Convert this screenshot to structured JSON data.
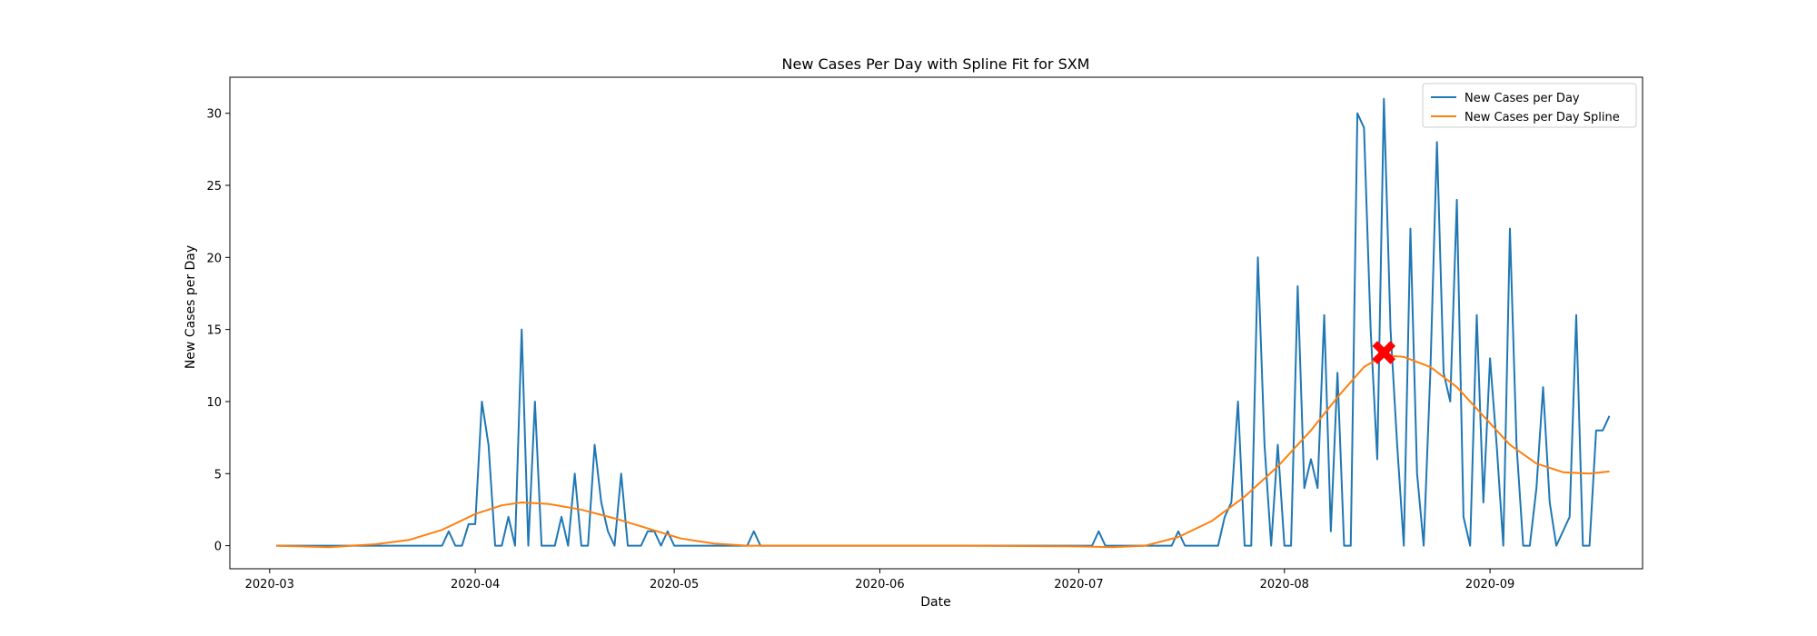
{
  "chart_data": {
    "type": "line",
    "title": "New Cases Per Day with Spline Fit for SXM",
    "xlabel": "Date",
    "ylabel": "New Cases per Day",
    "x_range": [
      "2020-02-24",
      "2020-09-24"
    ],
    "ylim": [
      -1.6,
      32.5
    ],
    "x_ticks": [
      "2020-03-01",
      "2020-04-01",
      "2020-05-01",
      "2020-06-01",
      "2020-07-01",
      "2020-08-01",
      "2020-09-01"
    ],
    "x_tick_labels": [
      "2020-03",
      "2020-04",
      "2020-05",
      "2020-06",
      "2020-07",
      "2020-08",
      "2020-09"
    ],
    "y_ticks": [
      0,
      5,
      10,
      15,
      20,
      25,
      30
    ],
    "y_tick_labels": [
      "0",
      "5",
      "10",
      "15",
      "20",
      "25",
      "30"
    ],
    "grid": false,
    "legend_position": "top-right",
    "series": [
      {
        "name": "New Cases per Day",
        "color": "#1f77b4",
        "points": [
          [
            "2020-03-02",
            0
          ],
          [
            "2020-03-27",
            0
          ],
          [
            "2020-03-28",
            1
          ],
          [
            "2020-03-29",
            0
          ],
          [
            "2020-03-30",
            0
          ],
          [
            "2020-03-31",
            1.5
          ],
          [
            "2020-04-01",
            1.5
          ],
          [
            "2020-04-02",
            10
          ],
          [
            "2020-04-03",
            7
          ],
          [
            "2020-04-04",
            0
          ],
          [
            "2020-04-05",
            0
          ],
          [
            "2020-04-06",
            2
          ],
          [
            "2020-04-07",
            0
          ],
          [
            "2020-04-08",
            15
          ],
          [
            "2020-04-09",
            0
          ],
          [
            "2020-04-10",
            10
          ],
          [
            "2020-04-11",
            0
          ],
          [
            "2020-04-12",
            0
          ],
          [
            "2020-04-13",
            0
          ],
          [
            "2020-04-14",
            2
          ],
          [
            "2020-04-15",
            0
          ],
          [
            "2020-04-16",
            5
          ],
          [
            "2020-04-17",
            0
          ],
          [
            "2020-04-18",
            0
          ],
          [
            "2020-04-19",
            7
          ],
          [
            "2020-04-20",
            3
          ],
          [
            "2020-04-21",
            1
          ],
          [
            "2020-04-22",
            0
          ],
          [
            "2020-04-23",
            5
          ],
          [
            "2020-04-24",
            0
          ],
          [
            "2020-04-25",
            0
          ],
          [
            "2020-04-26",
            0
          ],
          [
            "2020-04-27",
            1
          ],
          [
            "2020-04-28",
            1
          ],
          [
            "2020-04-29",
            0
          ],
          [
            "2020-04-30",
            1
          ],
          [
            "2020-05-01",
            0
          ],
          [
            "2020-05-12",
            0
          ],
          [
            "2020-05-13",
            1
          ],
          [
            "2020-05-14",
            0
          ],
          [
            "2020-07-03",
            0
          ],
          [
            "2020-07-04",
            1
          ],
          [
            "2020-07-05",
            0
          ],
          [
            "2020-07-15",
            0
          ],
          [
            "2020-07-16",
            1
          ],
          [
            "2020-07-17",
            0
          ],
          [
            "2020-07-22",
            0
          ],
          [
            "2020-07-23",
            2
          ],
          [
            "2020-07-24",
            3
          ],
          [
            "2020-07-25",
            10
          ],
          [
            "2020-07-26",
            0
          ],
          [
            "2020-07-27",
            0
          ],
          [
            "2020-07-28",
            20
          ],
          [
            "2020-07-29",
            7
          ],
          [
            "2020-07-30",
            0
          ],
          [
            "2020-07-31",
            7
          ],
          [
            "2020-08-01",
            0
          ],
          [
            "2020-08-02",
            0
          ],
          [
            "2020-08-03",
            18
          ],
          [
            "2020-08-04",
            4
          ],
          [
            "2020-08-05",
            6
          ],
          [
            "2020-08-06",
            4
          ],
          [
            "2020-08-07",
            16
          ],
          [
            "2020-08-08",
            1
          ],
          [
            "2020-08-09",
            12
          ],
          [
            "2020-08-10",
            0
          ],
          [
            "2020-08-11",
            0
          ],
          [
            "2020-08-12",
            30
          ],
          [
            "2020-08-13",
            29
          ],
          [
            "2020-08-14",
            15
          ],
          [
            "2020-08-15",
            6
          ],
          [
            "2020-08-16",
            31
          ],
          [
            "2020-08-17",
            15
          ],
          [
            "2020-08-18",
            7
          ],
          [
            "2020-08-19",
            0
          ],
          [
            "2020-08-20",
            22
          ],
          [
            "2020-08-21",
            5
          ],
          [
            "2020-08-22",
            0
          ],
          [
            "2020-08-23",
            12
          ],
          [
            "2020-08-24",
            28
          ],
          [
            "2020-08-25",
            12
          ],
          [
            "2020-08-26",
            10
          ],
          [
            "2020-08-27",
            24
          ],
          [
            "2020-08-28",
            2
          ],
          [
            "2020-08-29",
            0
          ],
          [
            "2020-08-30",
            16
          ],
          [
            "2020-08-31",
            3
          ],
          [
            "2020-09-01",
            13
          ],
          [
            "2020-09-02",
            7
          ],
          [
            "2020-09-03",
            0
          ],
          [
            "2020-09-04",
            22
          ],
          [
            "2020-09-05",
            7
          ],
          [
            "2020-09-06",
            0
          ],
          [
            "2020-09-07",
            0
          ],
          [
            "2020-09-08",
            4
          ],
          [
            "2020-09-09",
            11
          ],
          [
            "2020-09-10",
            3
          ],
          [
            "2020-09-11",
            0
          ],
          [
            "2020-09-13",
            2
          ],
          [
            "2020-09-14",
            16
          ],
          [
            "2020-09-15",
            0
          ],
          [
            "2020-09-16",
            0
          ],
          [
            "2020-09-17",
            8
          ],
          [
            "2020-09-18",
            8
          ],
          [
            "2020-09-19",
            9
          ]
        ]
      },
      {
        "name": "New Cases per Day Spline",
        "color": "#ff7f0e",
        "points": [
          [
            "2020-03-02",
            0
          ],
          [
            "2020-03-10",
            -0.1
          ],
          [
            "2020-03-17",
            0.1
          ],
          [
            "2020-03-22",
            0.4
          ],
          [
            "2020-03-27",
            1.1
          ],
          [
            "2020-04-01",
            2.2
          ],
          [
            "2020-04-05",
            2.8
          ],
          [
            "2020-04-08",
            3.0
          ],
          [
            "2020-04-12",
            2.9
          ],
          [
            "2020-04-17",
            2.5
          ],
          [
            "2020-04-22",
            1.9
          ],
          [
            "2020-04-27",
            1.2
          ],
          [
            "2020-05-02",
            0.5
          ],
          [
            "2020-05-07",
            0.15
          ],
          [
            "2020-05-12",
            0.0
          ],
          [
            "2020-05-20",
            0.0
          ],
          [
            "2020-06-01",
            0.0
          ],
          [
            "2020-06-15",
            0.0
          ],
          [
            "2020-07-01",
            -0.05
          ],
          [
            "2020-07-06",
            -0.1
          ],
          [
            "2020-07-11",
            0.0
          ],
          [
            "2020-07-16",
            0.6
          ],
          [
            "2020-07-21",
            1.7
          ],
          [
            "2020-07-26",
            3.4
          ],
          [
            "2020-07-31",
            5.5
          ],
          [
            "2020-08-05",
            8.0
          ],
          [
            "2020-08-09",
            10.3
          ],
          [
            "2020-08-13",
            12.4
          ],
          [
            "2020-08-16",
            13.2
          ],
          [
            "2020-08-19",
            13.1
          ],
          [
            "2020-08-23",
            12.4
          ],
          [
            "2020-08-27",
            11.0
          ],
          [
            "2020-08-31",
            9.0
          ],
          [
            "2020-09-04",
            7.0
          ],
          [
            "2020-09-08",
            5.7
          ],
          [
            "2020-09-12",
            5.1
          ],
          [
            "2020-09-16",
            5.0
          ],
          [
            "2020-09-19",
            5.15
          ]
        ]
      }
    ],
    "marker": {
      "x": "2020-08-16",
      "y": 13.4,
      "symbol": "X",
      "color": "#ff0000"
    }
  }
}
